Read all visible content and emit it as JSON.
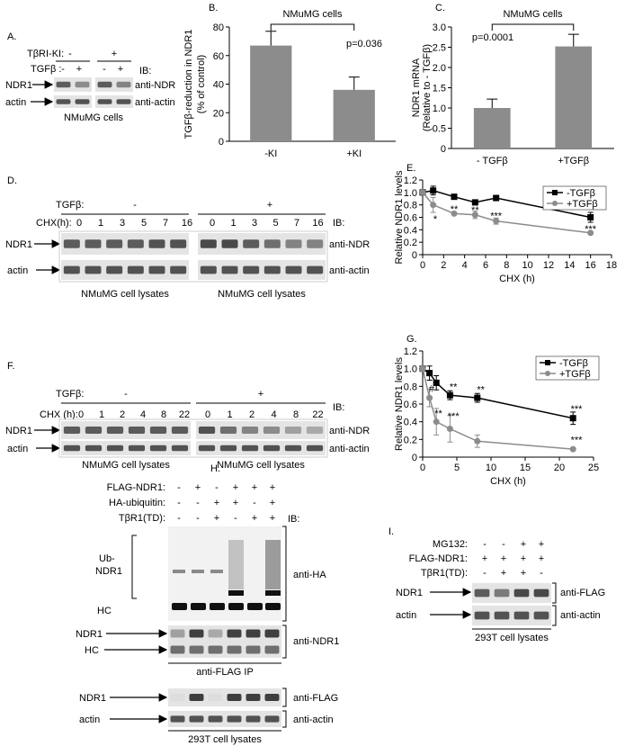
{
  "figure": {
    "panel_labels": [
      "A.",
      "B.",
      "C.",
      "D.",
      "E.",
      "F.",
      "G.",
      "H.",
      "I."
    ],
    "a": {
      "kinase_label": "TβRI-KI:",
      "kinase": [
        "-",
        "+"
      ],
      "tgf_label": "TGFβ :",
      "tgf": [
        "-",
        "+",
        "-",
        "+"
      ],
      "ib": "IB:",
      "rows": [
        "NDR1",
        "actin"
      ],
      "antibodies": [
        "anti-NDR",
        "anti-actin"
      ],
      "caption": "NMuMG cells"
    },
    "d": {
      "tgf_label": "TGFβ:",
      "tgf": [
        "-",
        "+"
      ],
      "chx_label": "CHX(h):",
      "chx": [
        0,
        1,
        3,
        5,
        7,
        16,
        0,
        1,
        3,
        5,
        7,
        16
      ],
      "ib": "IB:",
      "rows": [
        "NDR1",
        "actin"
      ],
      "antibodies": [
        "anti-NDR",
        "anti-actin"
      ],
      "captions": [
        "NMuMG cell lysates",
        "NMuMG cell lysates"
      ]
    },
    "f": {
      "tgf_label": "TGFβ:",
      "tgf": [
        "-",
        "+"
      ],
      "chx_label": "CHX (h):",
      "chx": [
        0,
        1,
        2,
        4,
        8,
        22,
        0,
        1,
        2,
        4,
        8,
        22
      ],
      "ib": "IB:",
      "rows": [
        "NDR1",
        "actin"
      ],
      "antibodies": [
        "anti-NDR",
        "anti-actin"
      ],
      "captions": [
        "NMuMG cell lysates",
        "NMuMG cell lysates"
      ]
    },
    "h": {
      "treatments": [
        {
          "label": "FLAG-NDR1:",
          "lanes": [
            "-",
            "+",
            "-",
            "+",
            "+",
            "+"
          ]
        },
        {
          "label": "HA-ubiquitin:",
          "lanes": [
            "-",
            "-",
            "+",
            "+",
            "-",
            "+"
          ]
        },
        {
          "label": "TβR1(TD):",
          "lanes": [
            "-",
            "-",
            "+",
            "-",
            "+",
            "+"
          ]
        }
      ],
      "ib": "IB:",
      "ub_label": [
        "Ub-",
        "NDR1"
      ],
      "hc": "HC",
      "anti_ha": "anti-HA",
      "ndr_rows": [
        "NDR1",
        "HC"
      ],
      "anti_ndr1": "anti-NDR1",
      "ip_caption": "anti-FLAG IP",
      "lysate_rows": [
        "NDR1",
        "actin"
      ],
      "lysate_antibodies": [
        "anti-FLAG",
        "anti-actin"
      ],
      "caption": "293T cell lysates"
    },
    "i": {
      "treatments": [
        {
          "label": "MG132:",
          "lanes": [
            "-",
            "-",
            "+",
            "+"
          ]
        },
        {
          "label": "FLAG-NDR1:",
          "lanes": [
            "+",
            "+",
            "+",
            "+"
          ]
        },
        {
          "label": "TβR1(TD):",
          "lanes": [
            "-",
            "+",
            "+",
            "-"
          ]
        }
      ],
      "rows": [
        "NDR1",
        "actin"
      ],
      "antibodies": [
        "anti-FLAG",
        "anti-actin"
      ],
      "caption": "293T cell lysates"
    }
  },
  "chart_data": [
    {
      "type": "bar",
      "title": "NMuMG cells",
      "ylabel": [
        "TGFβ-reduction in NDR1",
        "(% of control)"
      ],
      "categories": [
        "-KI",
        "+KI"
      ],
      "values": [
        67,
        36
      ],
      "errors": [
        10,
        9
      ],
      "color": "#8c8c8c",
      "ylim": [
        0,
        80
      ],
      "yticks": [
        0,
        20,
        40,
        60,
        80
      ],
      "annotation": "p=0.036"
    },
    {
      "type": "bar",
      "title": "NMuMG cells",
      "ylabel": [
        "NDR1 mRNA",
        "(Relative to - TGFβ)"
      ],
      "categories": [
        "- TGFβ",
        "+TGFβ"
      ],
      "values": [
        1.0,
        2.52
      ],
      "errors": [
        0.22,
        0.3
      ],
      "color": "#8c8c8c",
      "ylim": [
        0,
        3
      ],
      "yticks": [
        0,
        0.5,
        {
          "value": 1,
          "label": "1.0"
        },
        1.5,
        {
          "value": 2,
          "label": "2.0"
        },
        2.5,
        {
          "value": 3,
          "label": "3.0"
        }
      ],
      "annotation": "p=0.0001"
    },
    {
      "type": "line",
      "xlabel": "CHX (h)",
      "ylabel": "Relative NDR1 levels",
      "x": [
        0,
        1,
        3,
        5,
        7,
        16
      ],
      "xlim": [
        0,
        18
      ],
      "xticks": [
        0,
        2,
        4,
        6,
        8,
        10,
        12,
        14,
        16,
        18
      ],
      "ylim": [
        0,
        1.2
      ],
      "yticks": [
        0,
        0.2,
        0.4,
        0.6,
        0.8,
        {
          "value": 1,
          "label": "1.0"
        },
        1.2
      ],
      "legend": "upper right",
      "series": [
        {
          "name": "-TGFβ",
          "color": "#000000",
          "marker": "square",
          "values": [
            1.0,
            1.03,
            0.93,
            0.84,
            0.91,
            0.6
          ],
          "errors": [
            0.03,
            0.07,
            0.02,
            0.03,
            0.04,
            0.08
          ]
        },
        {
          "name": "+TGFβ",
          "color": "#8c8c8c",
          "marker": "circle",
          "values": [
            1.0,
            0.8,
            0.66,
            0.64,
            0.54,
            0.35
          ],
          "errors": [
            0.03,
            0.12,
            0.02,
            0.06,
            0.05,
            0.02
          ]
        }
      ],
      "annotations": [
        {
          "text": "*",
          "x": 1.2,
          "y": 0.58
        },
        {
          "text": "**",
          "x": 3,
          "y": 0.74
        },
        {
          "text": "**",
          "x": 5,
          "y": 0.72
        },
        {
          "text": "***",
          "x": 7,
          "y": 0.63
        },
        {
          "text": "*",
          "x": 16,
          "y": 0.72
        },
        {
          "text": "***",
          "x": 16,
          "y": 0.42
        }
      ]
    },
    {
      "type": "line",
      "xlabel": "CHX (h)",
      "ylabel": "Relative NDR1 levels",
      "x": [
        0,
        1,
        2,
        4,
        8,
        22
      ],
      "xlim": [
        0,
        25
      ],
      "xticks": [
        0,
        5,
        10,
        15,
        20,
        25
      ],
      "ylim": [
        0,
        1.2
      ],
      "yticks": [
        0,
        0.2,
        0.4,
        0.6,
        0.8,
        {
          "value": 1,
          "label": "1.0"
        },
        1.2
      ],
      "legend": "upper right",
      "series": [
        {
          "name": "-TGFβ",
          "color": "#000000",
          "marker": "square",
          "values": [
            1.0,
            0.95,
            0.84,
            0.7,
            0.67,
            0.44
          ],
          "errors": [
            0.03,
            0.08,
            0.08,
            0.05,
            0.05,
            0.07
          ]
        },
        {
          "name": "+TGFβ",
          "color": "#8c8c8c",
          "marker": "circle",
          "values": [
            1.0,
            0.67,
            0.4,
            0.32,
            0.18,
            0.09
          ],
          "errors": [
            0.03,
            0.1,
            0.15,
            0.15,
            0.07,
            0.01
          ]
        }
      ],
      "annotations": [
        {
          "text": "#",
          "x": 1.3,
          "y": 0.78
        },
        {
          "text": "**",
          "x": 2.3,
          "y": 0.5
        },
        {
          "text": "**",
          "x": 4.5,
          "y": 0.8
        },
        {
          "text": "***",
          "x": 4.5,
          "y": 0.47
        },
        {
          "text": "**",
          "x": 8.5,
          "y": 0.77
        },
        {
          "text": "***",
          "x": 22.5,
          "y": 0.55
        },
        {
          "text": "***",
          "x": 22.5,
          "y": 0.2
        }
      ]
    }
  ]
}
